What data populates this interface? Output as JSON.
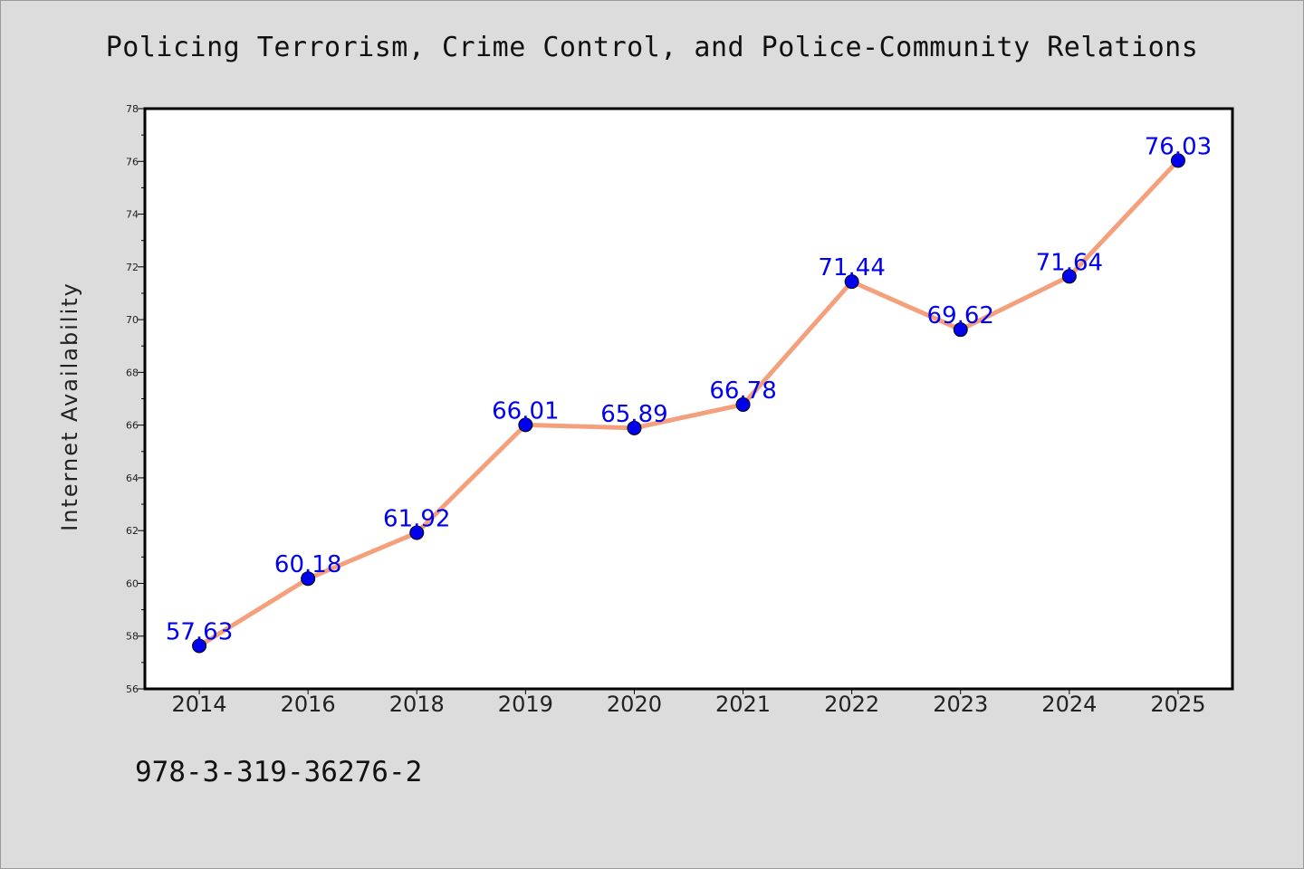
{
  "chart_data": {
    "type": "line",
    "title": "Policing Terrorism, Crime Control, and Police-Community Relations",
    "xlabel": "",
    "ylabel": "Internet Availability",
    "categories": [
      "2014",
      "2016",
      "2018",
      "2019",
      "2020",
      "2021",
      "2022",
      "2023",
      "2024",
      "2025"
    ],
    "series": [
      {
        "values": [
          57.63,
          60.18,
          61.92,
          66.01,
          65.89,
          66.78,
          71.44,
          69.62,
          71.64,
          76.03
        ],
        "labels": [
          "57.63",
          "60.18",
          "61.92",
          "66.01",
          "65.89",
          "66.78",
          "71.44",
          "69.62",
          "71.64",
          "76.03"
        ],
        "line_color": "#f4a07c",
        "marker_color": "#0000ee"
      }
    ],
    "ylim": [
      56,
      78
    ],
    "yticks": [
      "56",
      "58",
      "60",
      "62",
      "64",
      "66",
      "68",
      "70",
      "72",
      "74",
      "76",
      "78"
    ],
    "grid": false,
    "legend": "none"
  },
  "footnote": "978-3-319-36276-2",
  "colors": {
    "background": "#dcdcdc",
    "plot_background": "#ffffff",
    "axis": "#000000"
  }
}
